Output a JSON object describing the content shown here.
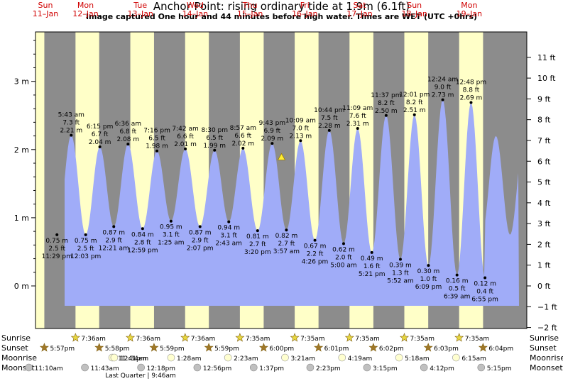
{
  "title": "Anchor Point: rising  ordinary tide at 1.9m (6.1ft)",
  "subtitle": "Image captured One hour and 44 minutes before high water. Times are WET (UTC +0hrs)",
  "chart_data": {
    "type": "area",
    "y_unit_left": "m",
    "y_unit_right": "ft",
    "ylim_m": [
      -0.5,
      3.65
    ],
    "y_ticks_m": [
      "0 m",
      "1 m",
      "2 m",
      "3 m"
    ],
    "y_ticks_ft": [
      "−2 ft",
      "−1 ft",
      "0 ft",
      "1 ft",
      "2 ft",
      "3 ft",
      "4 ft",
      "5 ft",
      "6 ft",
      "7 ft",
      "8 ft",
      "9 ft",
      "10 ft",
      "11 ft"
    ],
    "days": [
      {
        "dow": "Sun",
        "date": "11–Jan"
      },
      {
        "dow": "Mon",
        "date": "12–Jan"
      },
      {
        "dow": "Tue",
        "date": "13–Jan"
      },
      {
        "dow": "Wed",
        "date": "14–Jan"
      },
      {
        "dow": "Thu",
        "date": "15–Jan"
      },
      {
        "dow": "Fri",
        "date": "16–Jan"
      },
      {
        "dow": "Sat",
        "date": "17–Jan"
      },
      {
        "dow": "Sun",
        "date": "18–Jan"
      },
      {
        "dow": "Mon",
        "date": "19–Jan"
      }
    ],
    "tides": [
      {
        "kind": "low",
        "time": "11:29 pm",
        "m": 0.75,
        "ft": "2.5 ft",
        "m_label": "0.75 m"
      },
      {
        "kind": "high",
        "time": "5:43 am",
        "m": 2.21,
        "ft": "7.3 ft",
        "m_label": "2.21 m"
      },
      {
        "kind": "low",
        "time": "12:03 pm",
        "m": 0.75,
        "ft": "2.5 ft",
        "m_label": "0.75 m"
      },
      {
        "kind": "high",
        "time": "6:15 pm",
        "m": 2.04,
        "ft": "6.7 ft",
        "m_label": "2.04 m"
      },
      {
        "kind": "low",
        "time": "12:21 am",
        "m": 0.87,
        "ft": "2.9 ft",
        "m_label": "0.87 m"
      },
      {
        "kind": "high",
        "time": "6:36 am",
        "m": 2.08,
        "ft": "6.8 ft",
        "m_label": "2.08 m"
      },
      {
        "kind": "low",
        "time": "12:59 pm",
        "m": 0.84,
        "ft": "2.8 ft",
        "m_label": "0.84 m"
      },
      {
        "kind": "high",
        "time": "7:16 pm",
        "m": 1.98,
        "ft": "6.5 ft",
        "m_label": "1.98 m"
      },
      {
        "kind": "low",
        "time": "1:25 am",
        "m": 0.95,
        "ft": "3.1 ft",
        "m_label": "0.95 m"
      },
      {
        "kind": "high",
        "time": "7:42 am",
        "m": 2.01,
        "ft": "6.6 ft",
        "m_label": "2.01 m"
      },
      {
        "kind": "low",
        "time": "2:07 pm",
        "m": 0.87,
        "ft": "2.9 ft",
        "m_label": "0.87 m"
      },
      {
        "kind": "high",
        "time": "8:30 pm",
        "m": 1.99,
        "ft": "6.5 ft",
        "m_label": "1.99 m"
      },
      {
        "kind": "low",
        "time": "2:43 am",
        "m": 0.94,
        "ft": "3.1 ft",
        "m_label": "0.94 m"
      },
      {
        "kind": "high",
        "time": "8:57 am",
        "m": 2.02,
        "ft": "6.6 ft",
        "m_label": "2.02 m"
      },
      {
        "kind": "low",
        "time": "3:20 pm",
        "m": 0.81,
        "ft": "2.7 ft",
        "m_label": "0.81 m"
      },
      {
        "kind": "high",
        "time": "9:43 pm",
        "m": 2.09,
        "ft": "6.9 ft",
        "m_label": "2.09 m"
      },
      {
        "kind": "low",
        "time": "3:57 am",
        "m": 0.82,
        "ft": "2.7 ft",
        "m_label": "0.82 m"
      },
      {
        "kind": "high",
        "time": "10:09 am",
        "m": 2.13,
        "ft": "7.0 ft",
        "m_label": "2.13 m"
      },
      {
        "kind": "low",
        "time": "4:26 pm",
        "m": 0.67,
        "ft": "2.2 ft",
        "m_label": "0.67 m"
      },
      {
        "kind": "high",
        "time": "10:44 pm",
        "m": 2.28,
        "ft": "7.5 ft",
        "m_label": "2.28 m"
      },
      {
        "kind": "low",
        "time": "5:00 am",
        "m": 0.62,
        "ft": "2.0 ft",
        "m_label": "0.62 m"
      },
      {
        "kind": "high",
        "time": "11:09 am",
        "m": 2.31,
        "ft": "7.6 ft",
        "m_label": "2.31 m"
      },
      {
        "kind": "low",
        "time": "5:21 pm",
        "m": 0.49,
        "ft": "1.6 ft",
        "m_label": "0.49 m"
      },
      {
        "kind": "high",
        "time": "11:37 pm",
        "m": 2.5,
        "ft": "8.2 ft",
        "m_label": "2.50 m"
      },
      {
        "kind": "low",
        "time": "5:52 am",
        "m": 0.39,
        "ft": "1.3 ft",
        "m_label": "0.39 m"
      },
      {
        "kind": "high",
        "time": "12:01 pm",
        "m": 2.51,
        "ft": "8.2 ft",
        "m_label": "2.51 m"
      },
      {
        "kind": "low",
        "time": "6:09 pm",
        "m": 0.3,
        "ft": "1.0 ft",
        "m_label": "0.30 m"
      },
      {
        "kind": "high",
        "time": "12:24 am",
        "m": 2.73,
        "ft": "9.0 ft",
        "m_label": "2.73 m"
      },
      {
        "kind": "low",
        "time": "6:39 am",
        "m": 0.16,
        "ft": "0.5 ft",
        "m_label": "0.16 m"
      },
      {
        "kind": "high",
        "time": "12:48 pm",
        "m": 2.69,
        "ft": "8.8 ft",
        "m_label": "2.69 m"
      },
      {
        "kind": "low",
        "time": "6:55 pm",
        "m": 0.12,
        "ft": "0.4 ft",
        "m_label": "0.12 m"
      }
    ],
    "current_level_m": 1.9,
    "sunrise": [
      "7:36am",
      "7:36am",
      "7:36am",
      "7:35am",
      "7:35am",
      "7:35am",
      "7:35am",
      "7:35am"
    ],
    "sunset": [
      "5:57pm",
      "5:58pm",
      "5:59pm",
      "5:59pm",
      "6:00pm",
      "6:01pm",
      "6:02pm",
      "6:03pm",
      "6:04pm"
    ],
    "moonrise": [
      "11:41pm",
      "12:34am",
      "1:28am",
      "2:23am",
      "3:21am",
      "4:19am",
      "5:18am",
      "6:15am"
    ],
    "moonset": [
      "11:10am",
      "11:43am",
      "12:18pm",
      "12:56pm",
      "1:37pm",
      "2:23pm",
      "3:15pm",
      "4:12pm",
      "5:15pm"
    ],
    "moon_phase_note": "Last Quarter | 9:46am"
  },
  "row_labels": {
    "sunrise": "Sunrise",
    "sunset": "Sunset",
    "moonrise": "Moonrise",
    "moonset": "Moonset"
  },
  "colors": {
    "day": "#ffffc8",
    "night": "#8c8c8c",
    "water": "#a0acf8",
    "daylabel": "#d00000",
    "star": "#c8a030",
    "moon": "#e0e0e0"
  }
}
